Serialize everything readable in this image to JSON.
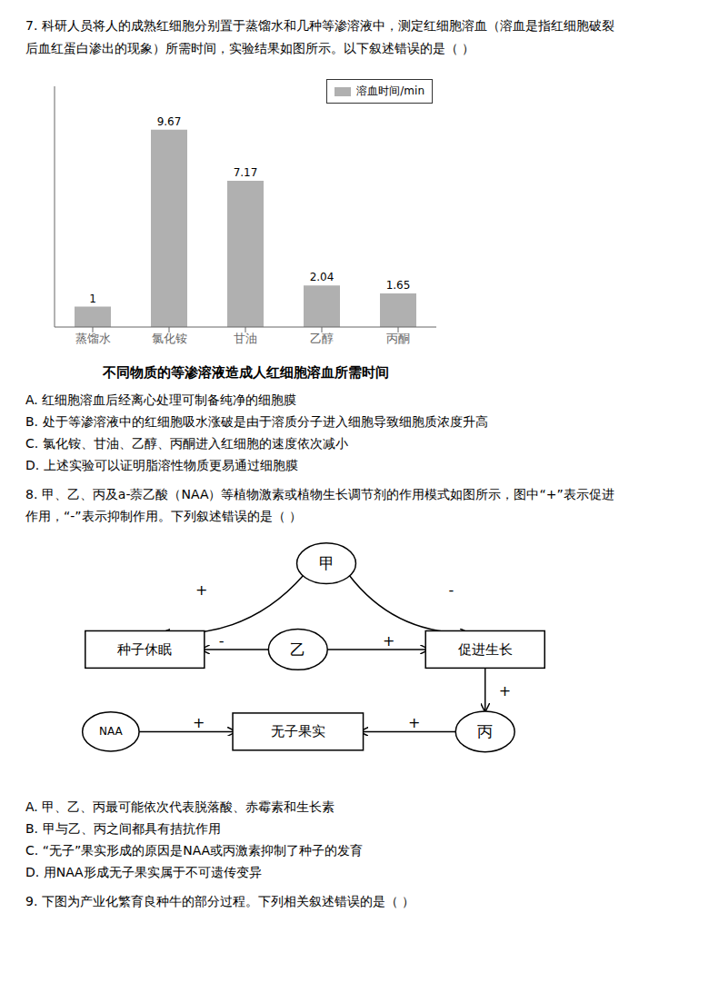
{
  "chart_data": {
    "type": "bar",
    "title": "不同物质的等渗溶液造成人红细胞溶血所需时间",
    "categories": [
      "蒸馏水",
      "氯化铵",
      "甘油",
      "乙醇",
      "丙酮"
    ],
    "series": [
      {
        "name": "溶血时间/min",
        "color": "#b0b0b0",
        "values": [
          1.0,
          9.67,
          7.17,
          2.04,
          1.65
        ]
      }
    ],
    "ylim": [
      0,
      11.8
    ],
    "legend": "upper right",
    "data_labels": true,
    "tick_labels": "x",
    "grid": false,
    "annotations": [
      "7. 科研人员将人的成熟红细胞分别置于蒸馏水和几种等渗溶液中，测定红细胞溶血（溶血是指红细胞破裂",
      "后血红蛋白渗出的现象）所需时间，实验结果如图所示。以下叙述错误的是（    ）",
      "A. 红细胞溶血后经离心处理可制备纯净的细胞膜",
      "B. 处于等渗溶液中的红细胞吸水涨破是由于溶质分子进入细胞导致细胞质浓度升高",
      "C. 氯化铵、甘油、乙醇、丙酮进入红细胞的速度依次减小",
      "D. 上述实验可以证明脂溶性物质更易通过细胞膜",
      "8. 甲、乙、丙及a-萘乙酸（NAA）等植物激素或植物生长调节剂的作用模式如图所示，图中“+”表示促进",
      "作用，“-”表示抑制作用。下列叙述错误的是（    ）",
      "甲",
      "种子休眠",
      "促进生长",
      "乙",
      "NAA",
      "无子果实",
      "丙",
      "+",
      "-",
      "-",
      "+",
      "+",
      "+",
      "+",
      "A. 甲、乙、丙最可能依次代表脱落酸、赤霉素和生长素",
      "B. 甲与乙、丙之间都具有拮抗作用",
      "C. “无子”果实形成的原因是NAA或丙激素抑制了种子的发育",
      "D. 用NAA形成无子果实属于不可遗传变异",
      "9. 下图为产业化繁育良种牛的部分过程。下列相关叙述错误的是（    ）"
    ]
  }
}
